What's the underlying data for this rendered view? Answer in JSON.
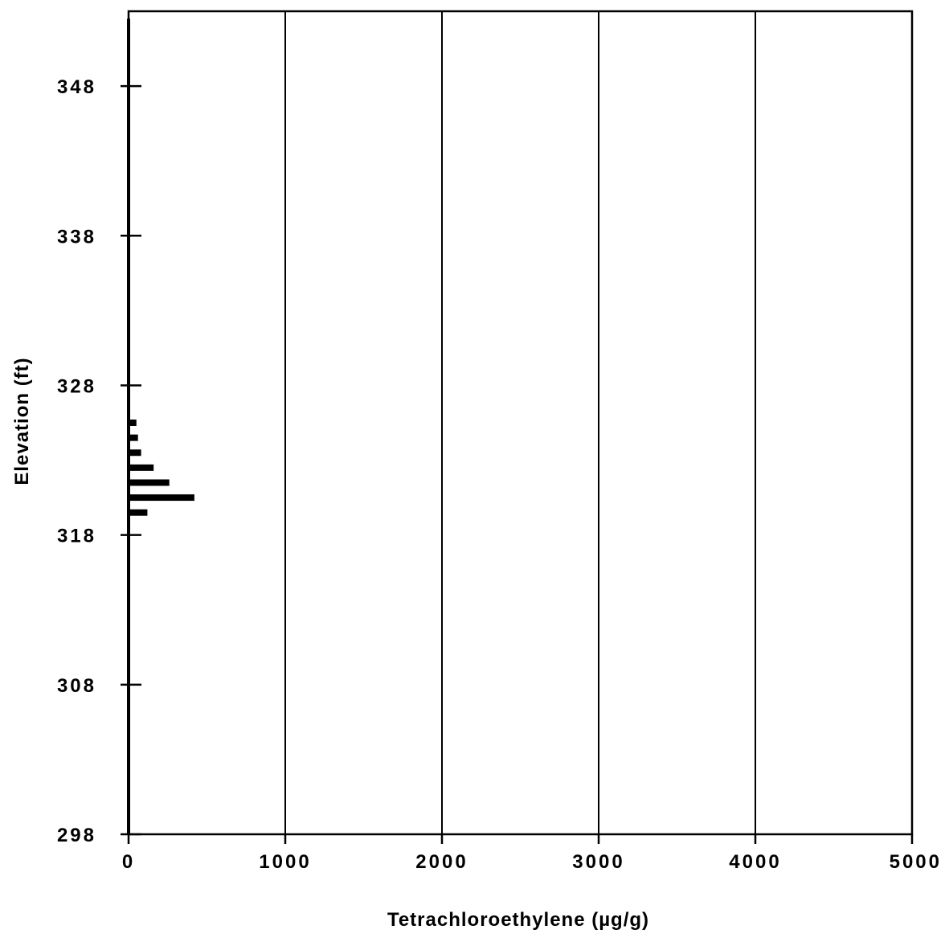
{
  "chart_data": {
    "type": "bar",
    "orientation": "horizontal",
    "title": "",
    "xlabel": "Tetrachloroethylene   (µg/g)",
    "ylabel": "Elevation  (ft)",
    "xlim": [
      0,
      5000
    ],
    "ylim": [
      298,
      353
    ],
    "x_ticks": [
      0,
      1000,
      2000,
      3000,
      4000,
      5000
    ],
    "x_tick_labels": [
      "0",
      "1000",
      "2000",
      "3000",
      "4000",
      "5000"
    ],
    "y_ticks": [
      298,
      308,
      318,
      328,
      338,
      348
    ],
    "y_tick_labels": [
      "298",
      "308",
      "318",
      "328",
      "338",
      "348"
    ],
    "vertical_gridlines": true,
    "horizontal_gridlines": false,
    "legend": "none",
    "bar_color": "#000000",
    "elevation_range": [
      298,
      352.5
    ],
    "baseline_value": 20,
    "bars": [
      {
        "elevation": 325.5,
        "value": 50
      },
      {
        "elevation": 324.5,
        "value": 60
      },
      {
        "elevation": 323.5,
        "value": 80
      },
      {
        "elevation": 322.5,
        "value": 160
      },
      {
        "elevation": 321.5,
        "value": 260
      },
      {
        "elevation": 320.5,
        "value": 420
      },
      {
        "elevation": 319.5,
        "value": 120
      }
    ]
  }
}
